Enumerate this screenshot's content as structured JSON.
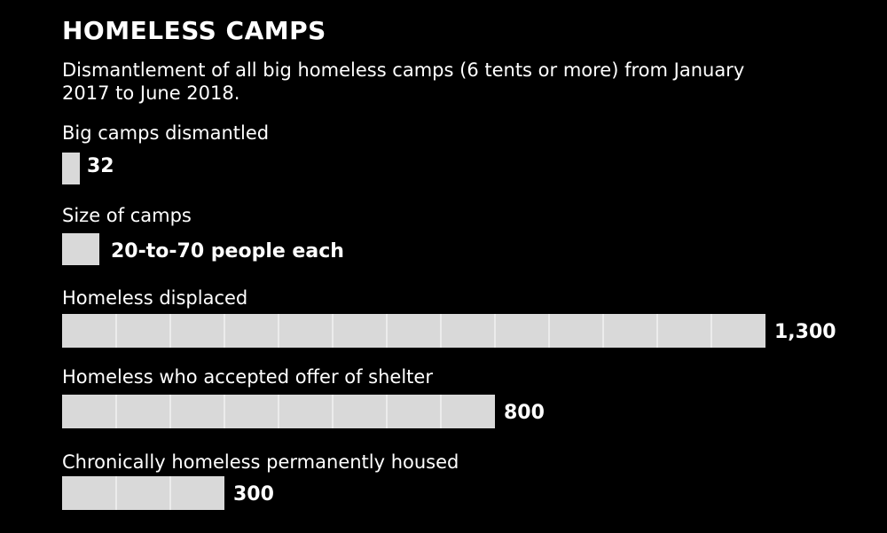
{
  "chart_data": {
    "type": "bar",
    "title": "HOMELESS CAMPS",
    "subtitle": "Dismantlement of all big homeless camps (6 tents or more) from January 2017 to June 2018.",
    "unit_per_block": 100,
    "rows": [
      {
        "label": "Big camps dismantled",
        "value": 32,
        "value_label": "32"
      },
      {
        "label": "Size of camps",
        "value": null,
        "value_label": "20-to-70 people each"
      },
      {
        "label": "Homeless displaced",
        "value": 1300,
        "value_label": "1,300"
      },
      {
        "label": "Homeless who accepted offer of shelter",
        "value": 800,
        "value_label": "800"
      },
      {
        "label": "Chronically homeless permanently housed",
        "value": 300,
        "value_label": "300"
      }
    ],
    "colors": {
      "background": "#000000",
      "bar": "#d9d9d9",
      "text": "#ffffff"
    }
  }
}
